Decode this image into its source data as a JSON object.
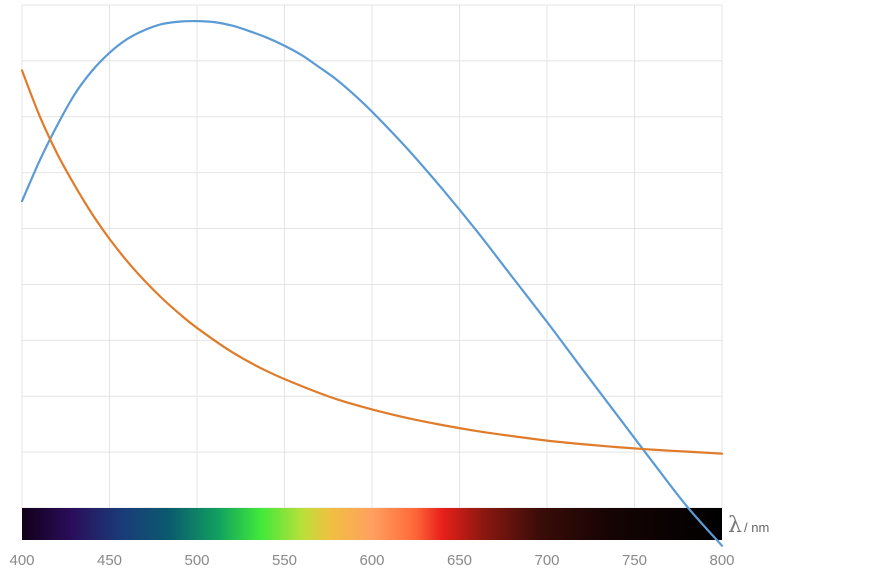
{
  "chart_data": {
    "type": "line",
    "title": "",
    "xlabel": "λ / nm",
    "xlabel_symbol": "λ",
    "xlabel_unit": "/ nm",
    "ylabel": "",
    "xlim": [
      400,
      800
    ],
    "ylim": [
      0,
      1
    ],
    "grid": true,
    "x_ticks": [
      "400",
      "450",
      "500",
      "550",
      "600",
      "650",
      "700",
      "750",
      "800"
    ],
    "spectrum_bar": true,
    "series": [
      {
        "color": "#5b9bd5",
        "x": [
          400,
          410,
          420,
          430,
          440,
          450,
          460,
          470,
          480,
          490,
          500,
          510,
          520,
          530,
          540,
          550,
          560,
          570,
          580,
          590,
          600,
          620,
          640,
          660,
          680,
          700,
          720,
          740,
          760,
          780,
          800
        ],
        "y": [
          0.61,
          0.69,
          0.76,
          0.822,
          0.869,
          0.905,
          0.932,
          0.95,
          0.962,
          0.967,
          0.968,
          0.966,
          0.959,
          0.948,
          0.935,
          0.919,
          0.9,
          0.876,
          0.851,
          0.821,
          0.788,
          0.715,
          0.635,
          0.55,
          0.46,
          0.37,
          0.277,
          0.185,
          0.093,
          0.003,
          -0.075
        ]
      },
      {
        "color": "#e07b2a",
        "x": [
          400,
          410,
          420,
          430,
          440,
          450,
          460,
          470,
          480,
          490,
          500,
          520,
          540,
          560,
          580,
          600,
          620,
          640,
          660,
          680,
          700,
          720,
          740,
          760,
          780,
          800
        ],
        "y": [
          0.87,
          0.78,
          0.705,
          0.642,
          0.585,
          0.535,
          0.491,
          0.452,
          0.417,
          0.386,
          0.358,
          0.31,
          0.272,
          0.242,
          0.216,
          0.196,
          0.179,
          0.165,
          0.153,
          0.143,
          0.134,
          0.127,
          0.121,
          0.116,
          0.112,
          0.108
        ]
      }
    ]
  }
}
